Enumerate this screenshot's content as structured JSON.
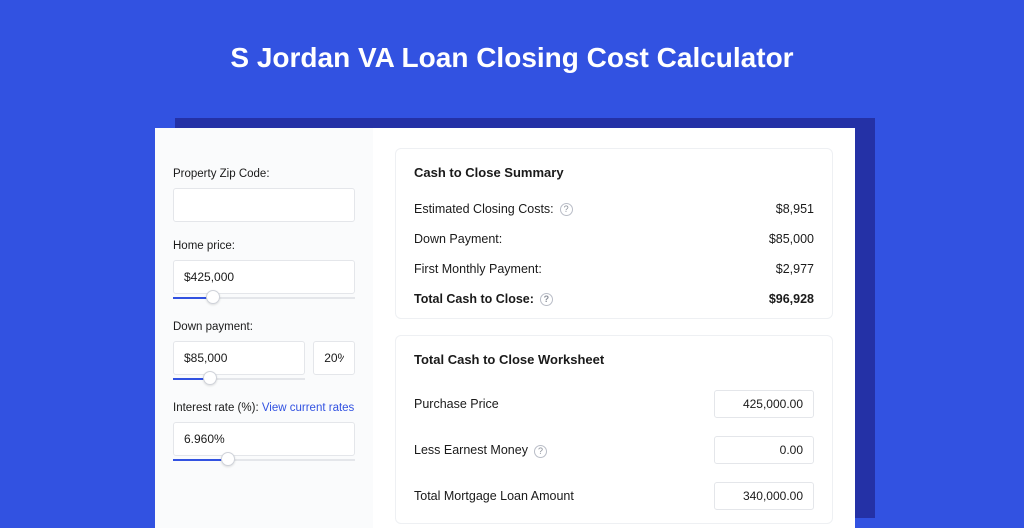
{
  "colors": {
    "page_bg": "#3252e1",
    "shadow_bg": "#2431a6",
    "app_bg": "#ffffff",
    "sidebar_bg": "#fafbfc",
    "border": "#e4e6ea",
    "text": "#1a1a1a",
    "link": "#3252e1",
    "slider_track": "#e4e6ea",
    "slider_fill": "#3252e1",
    "help_border": "#b9bdc7",
    "help_text": "#8a8f99"
  },
  "title": "S Jordan VA Loan Closing Cost Calculator",
  "sidebar": {
    "zip": {
      "label": "Property Zip Code:",
      "value": ""
    },
    "home_price": {
      "label": "Home price:",
      "value": "$425,000",
      "slider_pct": 22
    },
    "down_payment": {
      "label": "Down payment:",
      "value": "$85,000",
      "pct_value": "20%",
      "slider_pct": 28
    },
    "interest": {
      "label_prefix": "Interest rate (%): ",
      "link_text": "View current rates",
      "value": "6.960%",
      "slider_pct": 30
    }
  },
  "summary": {
    "title": "Cash to Close Summary",
    "rows": [
      {
        "label": "Estimated Closing Costs:",
        "help": true,
        "value": "$8,951",
        "bold": false
      },
      {
        "label": "Down Payment:",
        "help": false,
        "value": "$85,000",
        "bold": false
      },
      {
        "label": "First Monthly Payment:",
        "help": false,
        "value": "$2,977",
        "bold": false
      },
      {
        "label": "Total Cash to Close:",
        "help": true,
        "value": "$96,928",
        "bold": true
      }
    ]
  },
  "worksheet": {
    "title": "Total Cash to Close Worksheet",
    "rows": [
      {
        "label": "Purchase Price",
        "help": false,
        "value": "425,000.00"
      },
      {
        "label": "Less Earnest Money",
        "help": true,
        "value": "0.00"
      },
      {
        "label": "Total Mortgage Loan Amount",
        "help": false,
        "value": "340,000.00"
      }
    ]
  }
}
